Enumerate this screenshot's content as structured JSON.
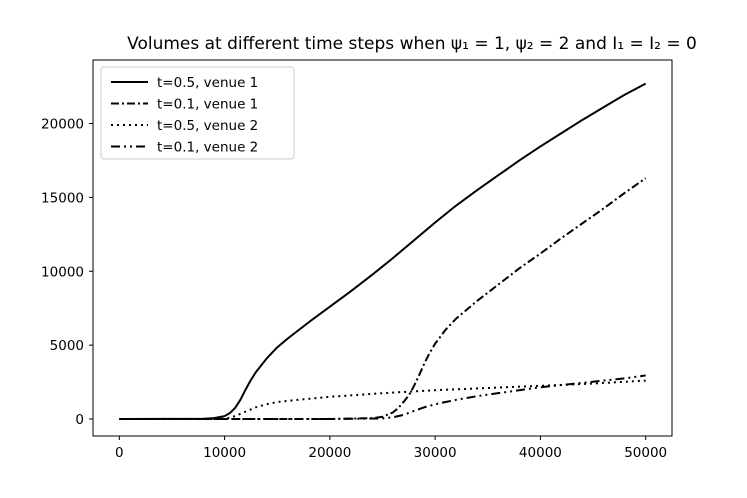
{
  "chart_data": {
    "type": "line",
    "title": "Volumes at different time steps when ψ₁ = 1, ψ₂ = 2 and I₁ = I₂ = 0",
    "xlabel": "",
    "ylabel": "",
    "xlim": [
      -2500,
      52500
    ],
    "ylim": [
      -1150,
      24300
    ],
    "x_ticks": [
      0,
      10000,
      20000,
      30000,
      40000,
      50000
    ],
    "y_ticks": [
      0,
      5000,
      10000,
      15000,
      20000
    ],
    "grid": false,
    "legend_position": "top-left",
    "series": [
      {
        "name": "t=0.5, venue 1",
        "style": "solid",
        "color": "#000000",
        "x": [
          0,
          8000,
          9000,
          10000,
          10500,
          11000,
          11500,
          12000,
          12500,
          13000,
          14000,
          15000,
          16000,
          18000,
          20000,
          22000,
          24000,
          26000,
          28000,
          30000,
          32000,
          34000,
          36000,
          38000,
          40000,
          42000,
          44000,
          46000,
          48000,
          50000
        ],
        "y": [
          0,
          20,
          60,
          200,
          400,
          750,
          1300,
          2000,
          2650,
          3200,
          4100,
          4850,
          5450,
          6550,
          7600,
          8650,
          9750,
          10900,
          12100,
          13300,
          14450,
          15500,
          16500,
          17500,
          18450,
          19350,
          20250,
          21100,
          21950,
          22700
        ]
      },
      {
        "name": "t=0.1, venue 1",
        "style": "dashdot",
        "color": "#000000",
        "x": [
          0,
          20000,
          24000,
          25000,
          26000,
          26500,
          27000,
          27500,
          28000,
          28500,
          29000,
          29500,
          30000,
          31000,
          32000,
          34000,
          36000,
          38000,
          40000,
          42000,
          44000,
          46000,
          48000,
          50000
        ],
        "y": [
          0,
          0,
          60,
          150,
          450,
          750,
          1150,
          1600,
          2250,
          3000,
          3800,
          4500,
          5100,
          6050,
          6800,
          8000,
          9100,
          10200,
          11200,
          12250,
          13250,
          14250,
          15300,
          16300
        ]
      },
      {
        "name": "t=0.5, venue 2",
        "style": "dotted",
        "color": "#000000",
        "x": [
          0,
          9000,
          10000,
          10500,
          11000,
          12000,
          13000,
          14000,
          15000,
          17000,
          20000,
          25000,
          30000,
          35000,
          40000,
          45000,
          50000
        ],
        "y": [
          0,
          5,
          30,
          80,
          200,
          500,
          800,
          1000,
          1150,
          1300,
          1500,
          1750,
          1950,
          2100,
          2250,
          2400,
          2600
        ]
      },
      {
        "name": "t=0.1, venue 2",
        "style": "dashdotdot",
        "color": "#000000",
        "x": [
          0,
          20000,
          25000,
          26000,
          27000,
          28000,
          29000,
          30000,
          31000,
          32000,
          34000,
          36000,
          38000,
          40000,
          42000,
          44000,
          46000,
          48000,
          50000
        ],
        "y": [
          0,
          0,
          40,
          120,
          280,
          550,
          800,
          1000,
          1150,
          1300,
          1550,
          1750,
          1950,
          2150,
          2300,
          2450,
          2600,
          2750,
          2950
        ]
      }
    ]
  }
}
